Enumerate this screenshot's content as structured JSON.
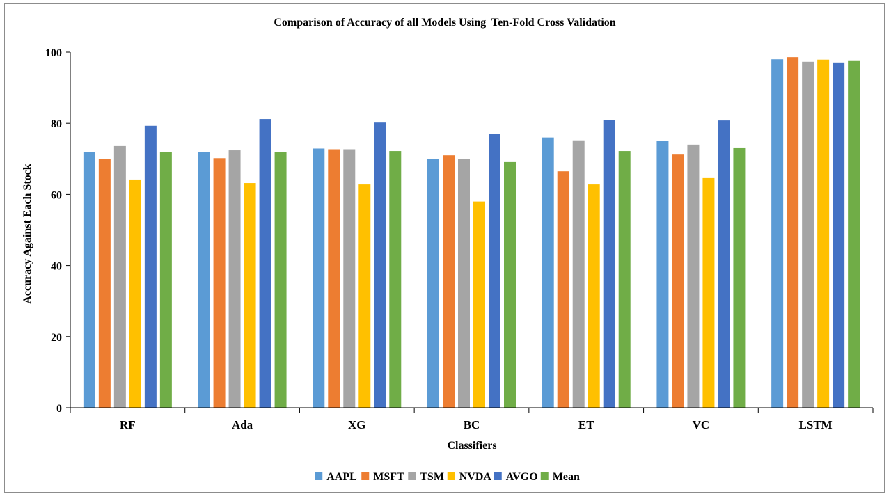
{
  "chart_data": {
    "type": "bar",
    "title": "Comparison of Accuracy of all Models Using  Ten-Fold Cross Validation",
    "xlabel": "Classifiers",
    "ylabel": "Accuracy Against Each Stock",
    "ylim": [
      0,
      100
    ],
    "yticks": [
      0,
      20,
      40,
      60,
      80,
      100
    ],
    "grid": false,
    "legend_position": "bottom",
    "categories": [
      "RF",
      "Ada",
      "XG",
      "BC",
      "ET",
      "VC",
      "LSTM"
    ],
    "series": [
      {
        "name": "AAPL",
        "color": "#5b9bd5",
        "values": [
          72.0,
          72.0,
          72.9,
          69.9,
          76.0,
          75.0,
          98.0
        ]
      },
      {
        "name": "MSFT",
        "color": "#ed7d31",
        "values": [
          69.9,
          70.2,
          72.7,
          71.0,
          66.5,
          71.2,
          98.6
        ]
      },
      {
        "name": "TSM",
        "color": "#a5a5a5",
        "values": [
          73.6,
          72.4,
          72.7,
          69.9,
          75.2,
          74.0,
          97.3
        ]
      },
      {
        "name": "NVDA",
        "color": "#ffc000",
        "values": [
          64.2,
          63.2,
          62.8,
          58.0,
          62.8,
          64.6,
          97.9
        ]
      },
      {
        "name": "AVGO",
        "color": "#4472c4",
        "values": [
          79.3,
          81.2,
          80.2,
          77.0,
          81.0,
          80.8,
          97.1
        ]
      },
      {
        "name": "Mean",
        "color": "#70ad47",
        "values": [
          71.9,
          71.9,
          72.2,
          69.1,
          72.2,
          73.2,
          97.7
        ]
      }
    ]
  }
}
